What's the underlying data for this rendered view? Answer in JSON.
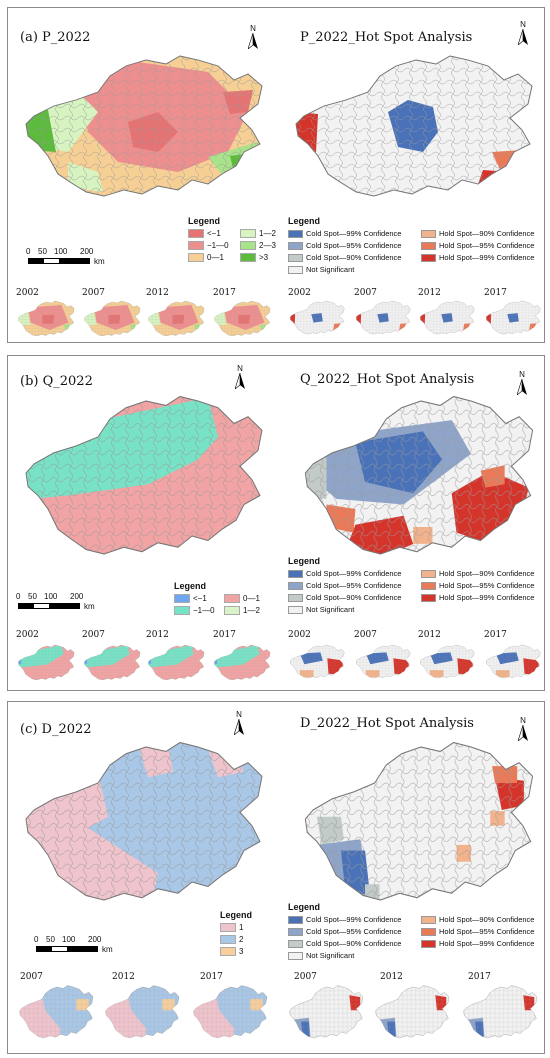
{
  "colors": {
    "p_lt_m1": "#e57373",
    "p_m1_0": "#ee8f8f",
    "p_0_1": "#f6cf94",
    "p_1_2": "#d6f3c0",
    "p_2_3": "#a8e28a",
    "p_gt3": "#5cba3c",
    "q_lt_m1": "#6ea6ef",
    "q_m1_0": "#77e2c5",
    "q_0_1": "#f2a3a3",
    "q_1_2": "#d9f5c8",
    "d_1": "#f0c4cc",
    "d_2": "#a9c7e6",
    "d_3": "#f6cf9c",
    "cold99": "#4a72b8",
    "cold95": "#8ea4c9",
    "cold90": "#c3cbc8",
    "hot90": "#f2b38c",
    "hot95": "#ea7a57",
    "hot99": "#d5342b",
    "not_sig": "#f2f2f2"
  },
  "hotspot_legend": {
    "title": "Legend",
    "cold99": "Cold Spot—99% Confidence",
    "cold95": "Cold Spot—95% Confidence",
    "cold90": "Cold Spot—90% Confidence",
    "hot90": "Hold Spot—90% Confidence",
    "hot95": "Hold Spot—95% Confidence",
    "hot99": "Hold Spot—99% Confidence",
    "not_sig": "Not Significant"
  },
  "north": "N",
  "panel_a": {
    "title": "(a)  P_2022",
    "hs_title": "P_2022_Hot Spot Analysis",
    "legend_title": "Legend",
    "legend": [
      "<−1",
      "1—2",
      "−1—0",
      "2—3",
      "0—1",
      ">3"
    ],
    "scale": {
      "t0": "0",
      "t1": "50",
      "t2": "100",
      "t3": "200",
      "unit": "km"
    },
    "years": [
      "2002",
      "2007",
      "2012",
      "2017"
    ]
  },
  "panel_b": {
    "title": "(b)  Q_2022",
    "hs_title": "Q_2022_Hot Spot Analysis",
    "legend_title": "Legend",
    "legend": [
      "<−1",
      "0—1",
      "−1—0",
      "1—2"
    ],
    "scale": {
      "t0": "0",
      "t1": "50",
      "t2": "100",
      "t3": "200",
      "unit": "km"
    },
    "years": [
      "2002",
      "2007",
      "2012",
      "2017"
    ]
  },
  "panel_c": {
    "title": "(c)  D_2022",
    "hs_title": "D_2022_Hot Spot Analysis",
    "legend_title": "Legend",
    "legend": [
      "1",
      "2",
      "3"
    ],
    "scale": {
      "t0": "0",
      "t1": "50",
      "t2": "100",
      "t3": "200",
      "unit": "km"
    },
    "years": [
      "2007",
      "2012",
      "2017"
    ]
  }
}
